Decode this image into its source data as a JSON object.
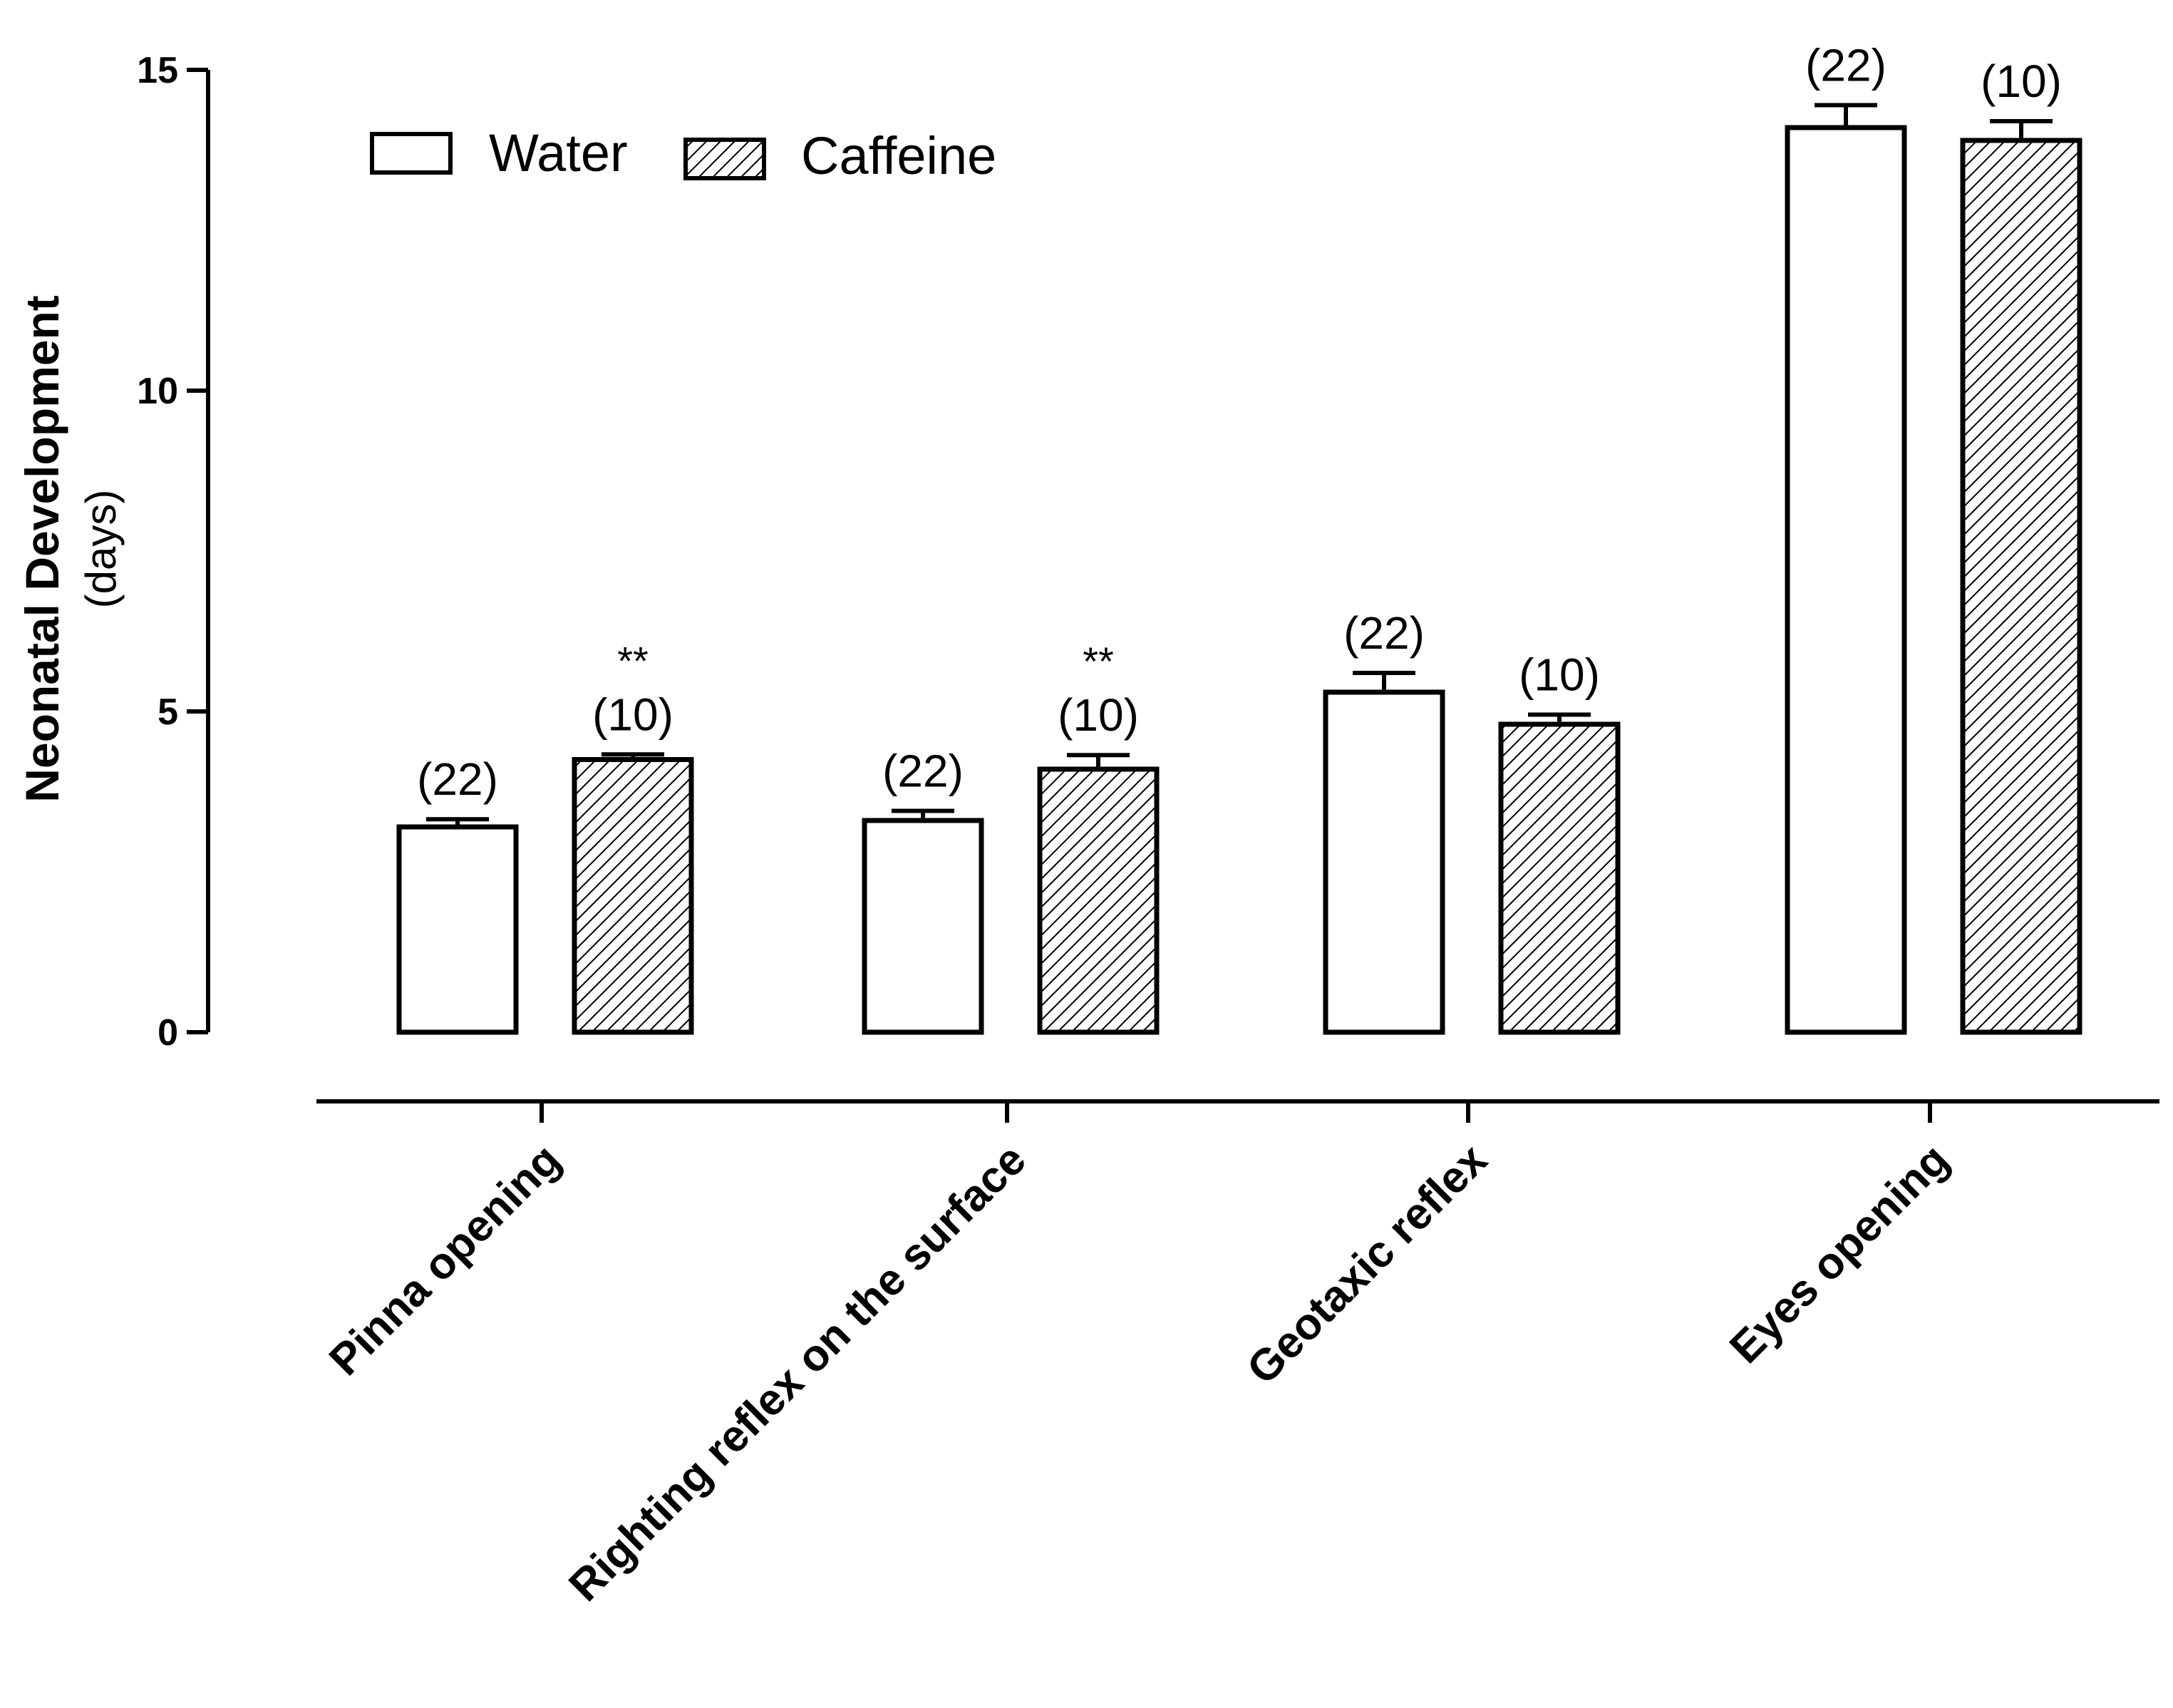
{
  "chart_data": {
    "type": "bar",
    "title": "",
    "xlabel": "",
    "ylabel": "Neonatal Development",
    "ylabel_sub": "(days)",
    "ylim": [
      0,
      15
    ],
    "yticks": [
      "0",
      "5",
      "10",
      "15"
    ],
    "ytick_values": [
      0,
      5,
      10,
      15
    ],
    "categories": [
      "Pinna opening",
      "Righting reflex on the surface",
      "Geotaxic reflex",
      "Eyes opening"
    ],
    "series": [
      {
        "name": "Water",
        "fill": "open",
        "values": [
          3.2,
          3.3,
          5.3,
          14.1
        ],
        "errors": [
          0.12,
          0.15,
          0.3,
          0.35
        ],
        "n_labels": [
          "(22)",
          "(22)",
          "(22)",
          "(22)"
        ],
        "sig_labels": [
          "",
          "",
          "",
          ""
        ]
      },
      {
        "name": "Caffeine",
        "fill": "hatched",
        "values": [
          4.25,
          4.1,
          4.8,
          13.9
        ],
        "errors": [
          0.08,
          0.22,
          0.15,
          0.3
        ],
        "n_labels": [
          "(10)",
          "(10)",
          "(10)",
          "(10)"
        ],
        "sig_labels": [
          "**",
          "**",
          "",
          ""
        ]
      }
    ],
    "legend": {
      "placement": "top-left",
      "entries": [
        "Water",
        "Caffeine"
      ]
    },
    "colors": {
      "stroke": "#000000",
      "water_fill": "#ffffff",
      "hatch": "#000000",
      "background": "#ffffff"
    }
  }
}
